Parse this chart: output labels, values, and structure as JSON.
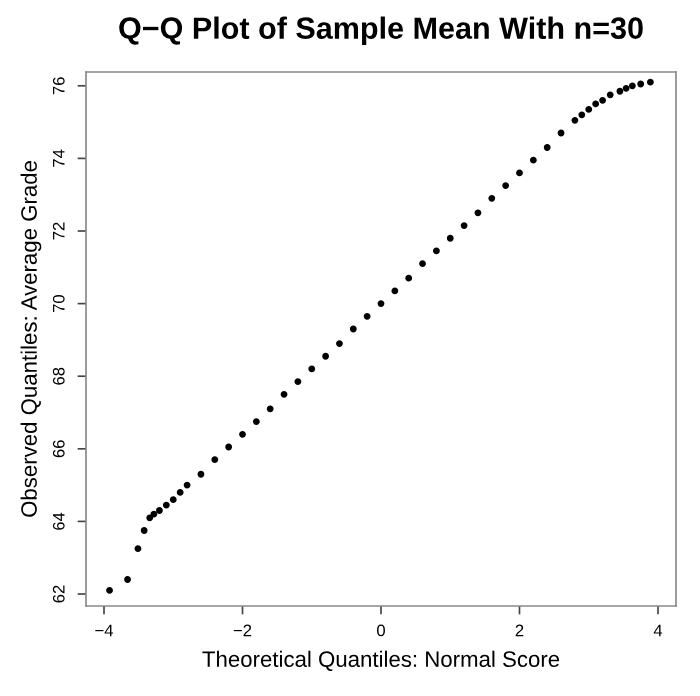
{
  "chart_data": {
    "type": "scatter",
    "title": "Q−Q Plot of Sample Mean With n=30",
    "xlabel": "Theoretical Quantiles: Normal Score",
    "ylabel": "Observed Quantiles: Average Grade",
    "x": [
      -3.92,
      -3.66,
      -3.51,
      -3.42,
      -3.34,
      -3.28,
      -3.2,
      -3.1,
      -3.0,
      -2.9,
      -2.8,
      -2.6,
      -2.4,
      -2.2,
      -2.0,
      -1.8,
      -1.6,
      -1.4,
      -1.2,
      -1.0,
      -0.8,
      -0.6,
      -0.4,
      -0.2,
      0.0,
      0.2,
      0.4,
      0.6,
      0.8,
      1.0,
      1.2,
      1.4,
      1.6,
      1.8,
      2.0,
      2.2,
      2.4,
      2.6,
      2.8,
      2.9,
      3.0,
      3.1,
      3.2,
      3.31,
      3.45,
      3.54,
      3.63,
      3.75,
      3.89
    ],
    "values": [
      62.1,
      62.4,
      63.25,
      63.75,
      64.1,
      64.2,
      64.3,
      64.45,
      64.6,
      64.8,
      65.0,
      65.3,
      65.7,
      66.05,
      66.4,
      66.75,
      67.1,
      67.5,
      67.85,
      68.2,
      68.55,
      68.9,
      69.3,
      69.65,
      70.0,
      70.35,
      70.7,
      71.1,
      71.45,
      71.8,
      72.15,
      72.5,
      72.9,
      73.25,
      73.6,
      73.95,
      74.3,
      74.7,
      75.05,
      75.2,
      75.35,
      75.5,
      75.6,
      75.75,
      75.85,
      75.93,
      76.0,
      76.05,
      76.1
    ],
    "color": "#000000",
    "marker": "circle",
    "xlim": [
      -4.26,
      4.26
    ],
    "ylim": [
      61.67,
      76.38
    ],
    "xticks": [
      {
        "value": -4,
        "label": "−4"
      },
      {
        "value": -2,
        "label": "−2"
      },
      0,
      2,
      4
    ],
    "yticks": [
      62,
      64,
      66,
      68,
      70,
      72,
      74,
      76
    ],
    "grid": false,
    "legend": false
  }
}
